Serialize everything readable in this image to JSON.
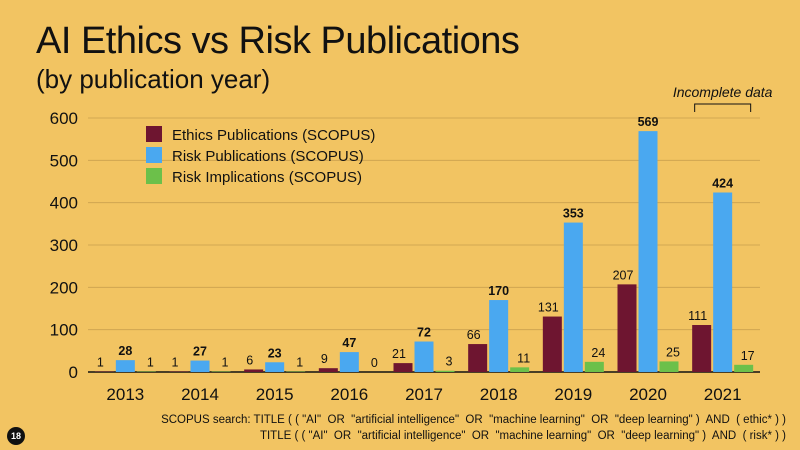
{
  "slide": {
    "title": "AI Ethics vs Risk Publications",
    "subtitle": "(by publication year)",
    "annotation": "Incomplete data",
    "footnote_line1": "SCOPUS search: TITLE ( ( \"AI\"  OR  \"artificial intelligence\"  OR  \"machine learning\"  OR  \"deep learning\" )  AND  ( ethic* ) )",
    "footnote_line2": "TITLE ( ( \"AI\"  OR  \"artificial intelligence\"  OR  \"machine learning\"  OR  \"deep learning\" )  AND  ( risk* ) )",
    "slide_number": "18"
  },
  "chart_data": {
    "type": "bar",
    "title": "AI Ethics vs Risk Publications",
    "subtitle": "(by publication year)",
    "categories": [
      "2013",
      "2014",
      "2015",
      "2016",
      "2017",
      "2018",
      "2019",
      "2020",
      "2021"
    ],
    "series": [
      {
        "name": "Ethics Publications (SCOPUS)",
        "color": "#6e1530",
        "values": [
          1,
          1,
          6,
          9,
          21,
          66,
          131,
          207,
          111
        ]
      },
      {
        "name": "Risk Publications (SCOPUS)",
        "color": "#4aa8f0",
        "values": [
          28,
          27,
          23,
          47,
          72,
          170,
          353,
          569,
          424
        ]
      },
      {
        "name": "Risk Implications (SCOPUS)",
        "color": "#6cc04a",
        "values": [
          1,
          1,
          1,
          0,
          3,
          11,
          24,
          25,
          17
        ]
      }
    ],
    "ylim": [
      0,
      600
    ],
    "yticks": [
      0,
      100,
      200,
      300,
      400,
      500,
      600
    ],
    "grid": true,
    "legend": "top-left",
    "annotations": [
      {
        "text": "Incomplete data",
        "categories": [
          "2021"
        ]
      }
    ]
  }
}
